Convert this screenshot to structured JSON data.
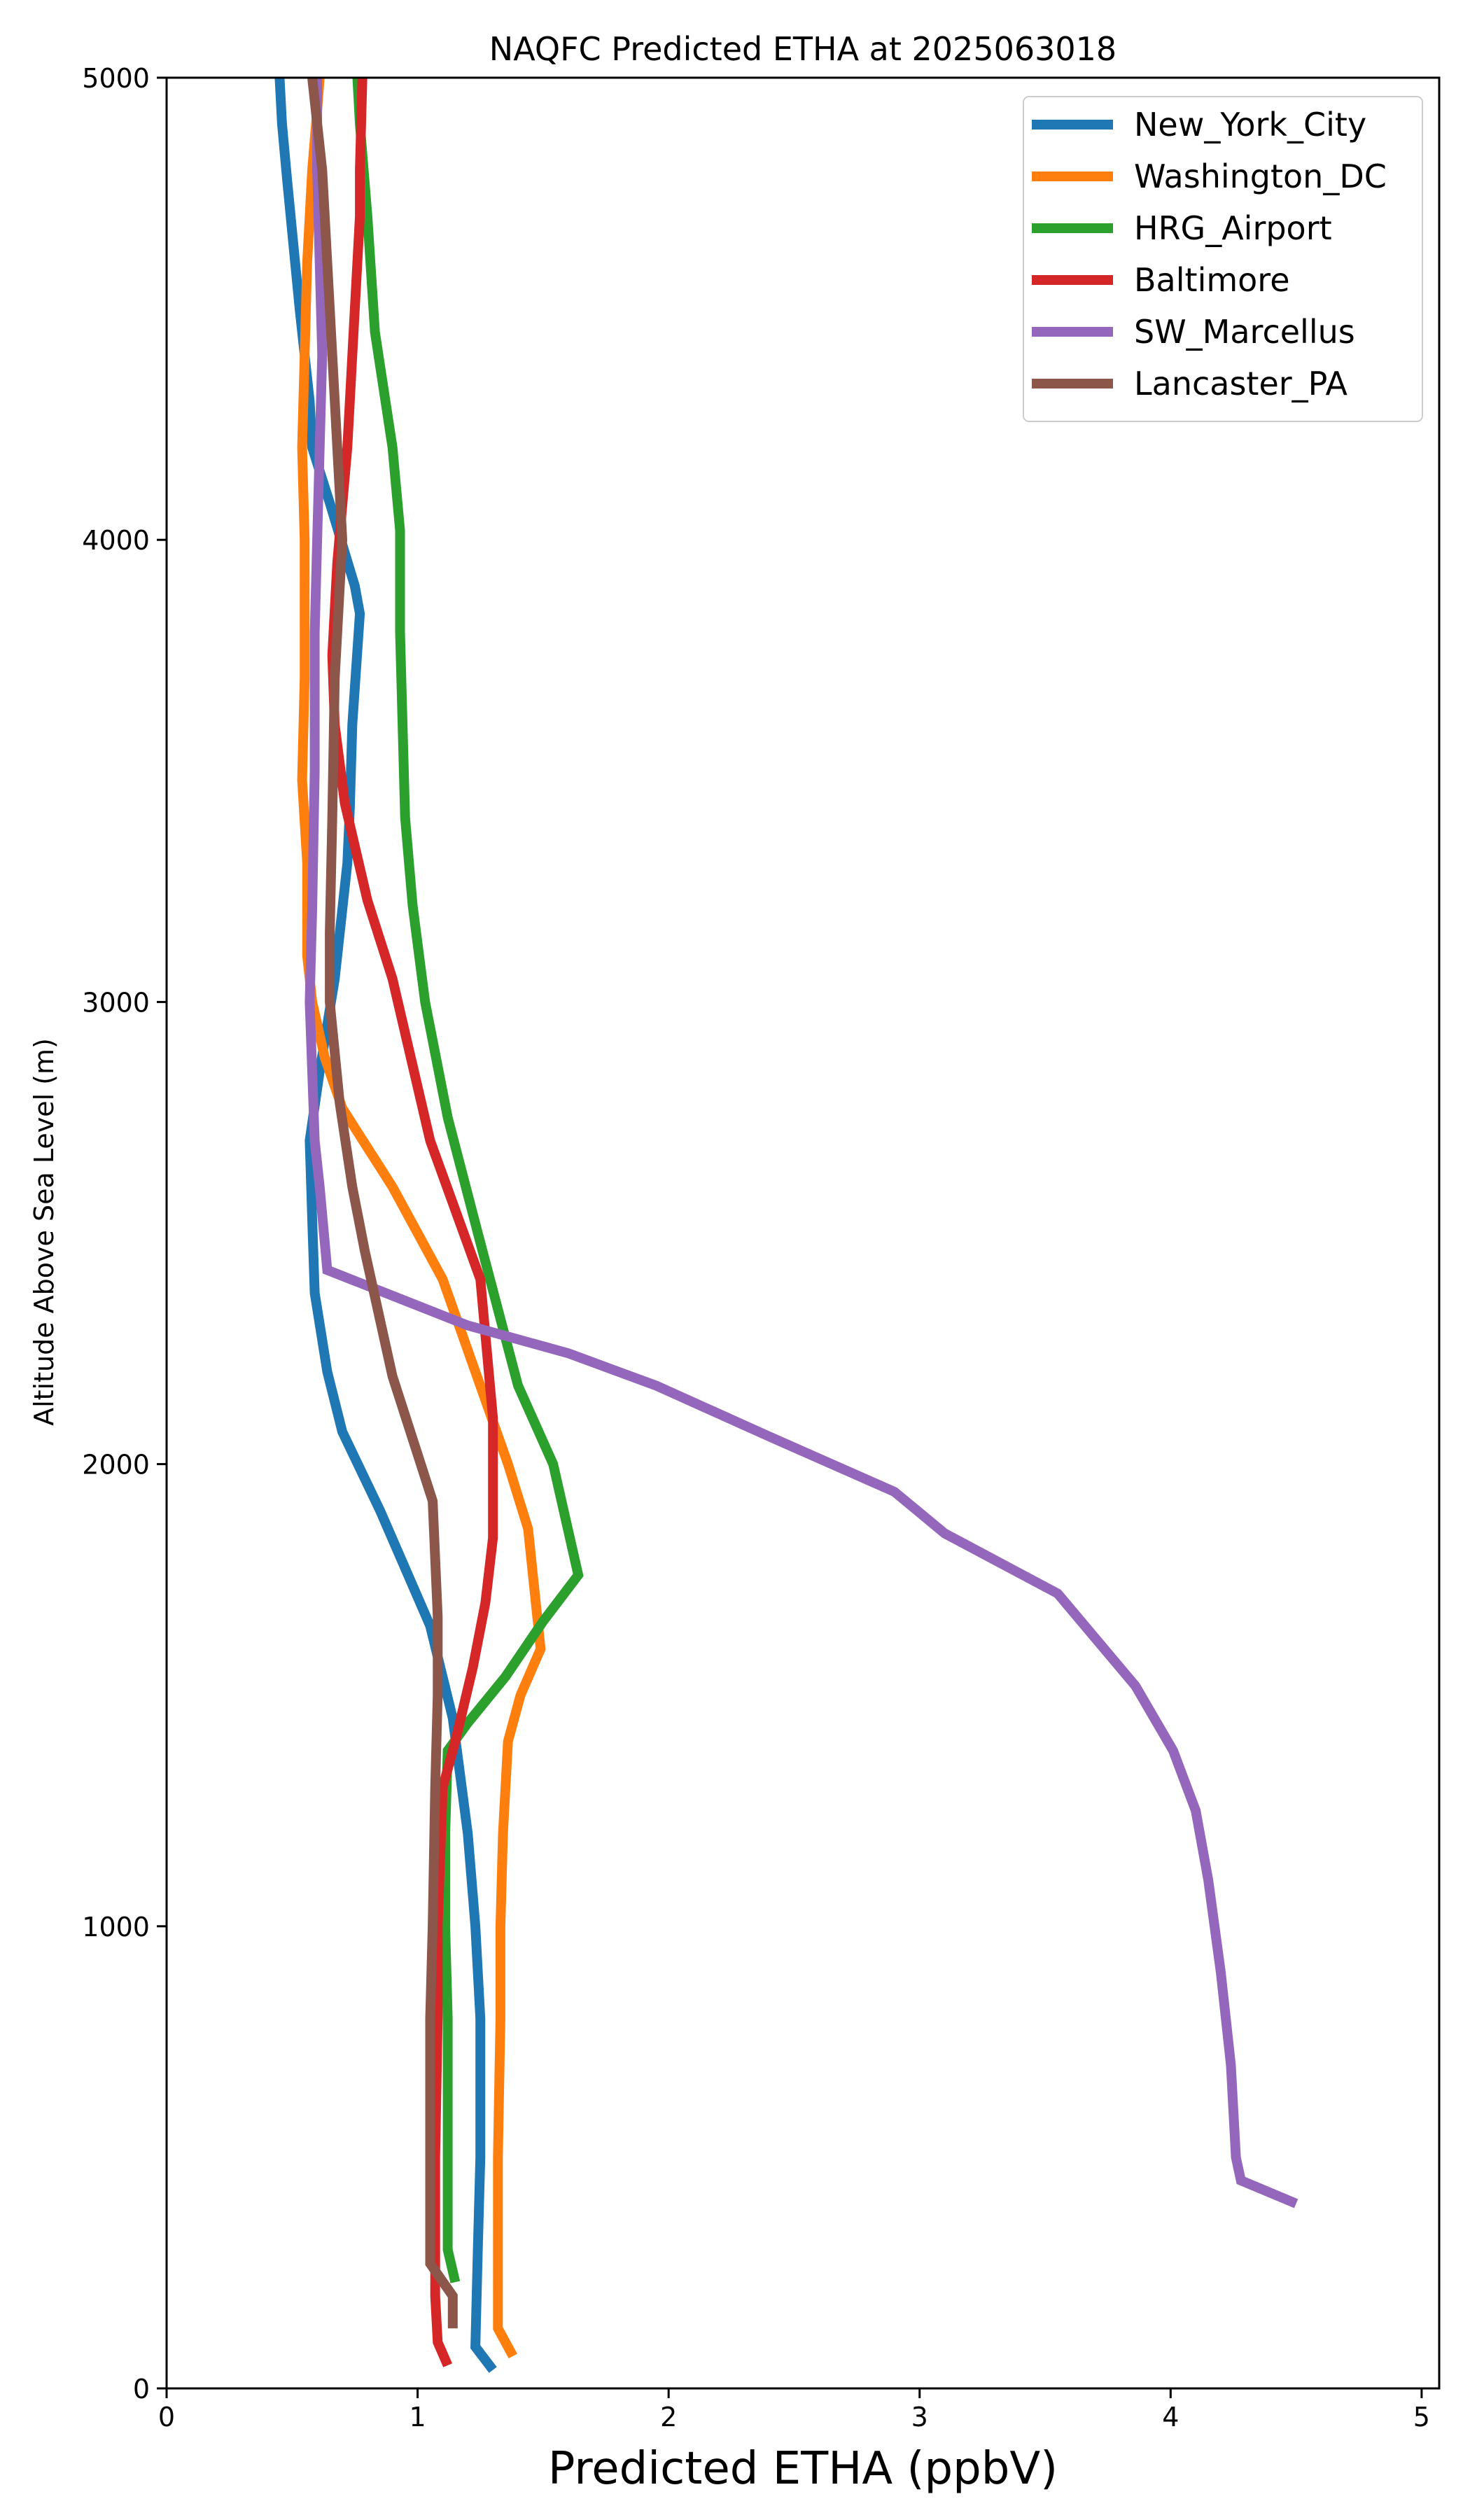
{
  "chart_data": {
    "type": "line",
    "title": "NAQFC Predicted ETHA at 2025063018",
    "xlabel": "Predicted ETHA (ppbV)",
    "ylabel": "Altitude Above Sea Level (m)",
    "xlim": [
      0,
      5.07
    ],
    "ylim": [
      0,
      5000
    ],
    "xticks": [
      "0",
      "1",
      "2",
      "3",
      "4",
      "5"
    ],
    "yticks": [
      "0",
      "1000",
      "2000",
      "3000",
      "4000",
      "5000"
    ],
    "grid": false,
    "legend": "top-right",
    "series": [
      {
        "name": "New_York_City",
        "color": "#1f77b4",
        "points": [
          [
            1.3,
            40
          ],
          [
            1.23,
            90
          ],
          [
            1.24,
            300
          ],
          [
            1.25,
            500
          ],
          [
            1.25,
            800
          ],
          [
            1.23,
            1000
          ],
          [
            1.2,
            1200
          ],
          [
            1.14,
            1450
          ],
          [
            1.05,
            1650
          ],
          [
            0.85,
            1900
          ],
          [
            0.7,
            2070
          ],
          [
            0.64,
            2200
          ],
          [
            0.59,
            2370
          ],
          [
            0.58,
            2530
          ],
          [
            0.57,
            2700
          ],
          [
            0.61,
            2850
          ],
          [
            0.67,
            3050
          ],
          [
            0.72,
            3300
          ],
          [
            0.73,
            3420
          ],
          [
            0.74,
            3600
          ],
          [
            0.77,
            3840
          ],
          [
            0.75,
            3900
          ],
          [
            0.65,
            4080
          ],
          [
            0.58,
            4200
          ],
          [
            0.57,
            4300
          ],
          [
            0.53,
            4500
          ],
          [
            0.48,
            4780
          ],
          [
            0.46,
            4900
          ],
          [
            0.45,
            5000
          ]
        ]
      },
      {
        "name": "Washington_DC",
        "color": "#ff7f0e",
        "points": [
          [
            1.38,
            70
          ],
          [
            1.32,
            130
          ],
          [
            1.32,
            300
          ],
          [
            1.32,
            500
          ],
          [
            1.33,
            800
          ],
          [
            1.33,
            1000
          ],
          [
            1.34,
            1200
          ],
          [
            1.36,
            1400
          ],
          [
            1.41,
            1500
          ],
          [
            1.49,
            1600
          ],
          [
            1.44,
            1860
          ],
          [
            1.36,
            2000
          ],
          [
            1.1,
            2400
          ],
          [
            0.9,
            2600
          ],
          [
            0.7,
            2770
          ],
          [
            0.63,
            2880
          ],
          [
            0.58,
            3000
          ],
          [
            0.56,
            3100
          ],
          [
            0.56,
            3300
          ],
          [
            0.54,
            3480
          ],
          [
            0.55,
            3700
          ],
          [
            0.55,
            4000
          ],
          [
            0.54,
            4200
          ],
          [
            0.55,
            4400
          ],
          [
            0.56,
            4600
          ],
          [
            0.58,
            4800
          ],
          [
            0.6,
            4930
          ],
          [
            0.61,
            5000
          ]
        ]
      },
      {
        "name": "HRG_Airport",
        "color": "#2ca02c",
        "points": [
          [
            1.15,
            230
          ],
          [
            1.12,
            300
          ],
          [
            1.12,
            500
          ],
          [
            1.12,
            800
          ],
          [
            1.11,
            1000
          ],
          [
            1.11,
            1200
          ],
          [
            1.12,
            1380
          ],
          [
            1.2,
            1440
          ],
          [
            1.35,
            1540
          ],
          [
            1.5,
            1660
          ],
          [
            1.64,
            1760
          ],
          [
            1.54,
            2000
          ],
          [
            1.4,
            2170
          ],
          [
            1.24,
            2500
          ],
          [
            1.12,
            2750
          ],
          [
            1.03,
            3000
          ],
          [
            0.98,
            3210
          ],
          [
            0.95,
            3400
          ],
          [
            0.94,
            3600
          ],
          [
            0.93,
            3800
          ],
          [
            0.93,
            4020
          ],
          [
            0.9,
            4200
          ],
          [
            0.83,
            4450
          ],
          [
            0.8,
            4700
          ],
          [
            0.77,
            4900
          ],
          [
            0.76,
            5000
          ]
        ]
      },
      {
        "name": "Baltimore",
        "color": "#d62728",
        "points": [
          [
            1.12,
            50
          ],
          [
            1.08,
            100
          ],
          [
            1.07,
            200
          ],
          [
            1.07,
            500
          ],
          [
            1.08,
            800
          ],
          [
            1.08,
            1000
          ],
          [
            1.1,
            1300
          ],
          [
            1.15,
            1400
          ],
          [
            1.22,
            1560
          ],
          [
            1.27,
            1700
          ],
          [
            1.3,
            1840
          ],
          [
            1.3,
            2100
          ],
          [
            1.25,
            2400
          ],
          [
            1.05,
            2700
          ],
          [
            0.9,
            3050
          ],
          [
            0.8,
            3220
          ],
          [
            0.71,
            3430
          ],
          [
            0.67,
            3600
          ],
          [
            0.66,
            3750
          ],
          [
            0.68,
            3950
          ],
          [
            0.72,
            4200
          ],
          [
            0.75,
            4500
          ],
          [
            0.77,
            4700
          ],
          [
            0.77,
            4800
          ],
          [
            0.78,
            5000
          ]
        ]
      },
      {
        "name": "SW_Marcellus",
        "color": "#9467bd",
        "points": [
          [
            4.5,
            400
          ],
          [
            4.28,
            450
          ],
          [
            4.26,
            500
          ],
          [
            4.24,
            700
          ],
          [
            4.2,
            900
          ],
          [
            4.15,
            1100
          ],
          [
            4.1,
            1250
          ],
          [
            4.01,
            1380
          ],
          [
            3.86,
            1520
          ],
          [
            3.55,
            1720
          ],
          [
            3.1,
            1850
          ],
          [
            2.9,
            1940
          ],
          [
            2.4,
            2060
          ],
          [
            1.95,
            2170
          ],
          [
            1.6,
            2240
          ],
          [
            1.2,
            2300
          ],
          [
            0.92,
            2360
          ],
          [
            0.64,
            2420
          ],
          [
            0.61,
            2600
          ],
          [
            0.59,
            2700
          ],
          [
            0.58,
            2850
          ],
          [
            0.57,
            3000
          ],
          [
            0.58,
            3200
          ],
          [
            0.59,
            3500
          ],
          [
            0.59,
            3800
          ],
          [
            0.6,
            4000
          ],
          [
            0.61,
            4200
          ],
          [
            0.62,
            4400
          ],
          [
            0.6,
            4800
          ],
          [
            0.6,
            5000
          ]
        ]
      },
      {
        "name": "Lancaster_PA",
        "color": "#8c564b",
        "points": [
          [
            1.14,
            130
          ],
          [
            1.14,
            200
          ],
          [
            1.05,
            270
          ],
          [
            1.05,
            500
          ],
          [
            1.05,
            800
          ],
          [
            1.06,
            1000
          ],
          [
            1.07,
            1300
          ],
          [
            1.08,
            1500
          ],
          [
            1.08,
            1670
          ],
          [
            1.06,
            1920
          ],
          [
            0.9,
            2190
          ],
          [
            0.79,
            2460
          ],
          [
            0.74,
            2600
          ],
          [
            0.69,
            2780
          ],
          [
            0.65,
            3000
          ],
          [
            0.65,
            3150
          ],
          [
            0.66,
            3400
          ],
          [
            0.67,
            3700
          ],
          [
            0.7,
            4000
          ],
          [
            0.68,
            4200
          ],
          [
            0.65,
            4500
          ],
          [
            0.62,
            4800
          ],
          [
            0.58,
            5000
          ]
        ]
      }
    ]
  }
}
